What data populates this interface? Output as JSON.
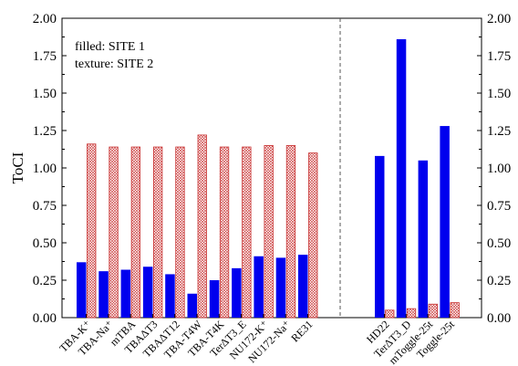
{
  "chart_data": {
    "type": "bar",
    "ylabel": "ToCI",
    "ylim": [
      0,
      2
    ],
    "yticks": [
      "0.00",
      "0.25",
      "0.50",
      "0.75",
      "1.00",
      "1.25",
      "1.50",
      "1.75",
      "2.00"
    ],
    "grid": false,
    "legend": {
      "placement": "top-left",
      "lines": [
        "filled: SITE 1",
        "texture: SITE 2"
      ]
    },
    "colors": {
      "site1": "#0000ee",
      "site2": "#c83232",
      "divider": "#555555"
    },
    "groups": [
      {
        "categories": [
          "TBA-K⁺",
          "TBA-Na⁺",
          "mTBA",
          "TBAΔT3",
          "TBAΔT12",
          "TBA-T4W",
          "TBA-T4K",
          "TerΔT3_E",
          "NU172-K⁺",
          "NU172-Na⁺",
          "RE31"
        ],
        "series": [
          {
            "name": "SITE 1",
            "values": [
              0.37,
              0.31,
              0.32,
              0.34,
              0.29,
              0.16,
              0.25,
              0.33,
              0.41,
              0.4,
              0.42
            ]
          },
          {
            "name": "SITE 2",
            "values": [
              1.16,
              1.14,
              1.14,
              1.14,
              1.14,
              1.22,
              1.14,
              1.14,
              1.15,
              1.15,
              1.1
            ]
          }
        ]
      },
      {
        "categories": [
          "HD22",
          "TerΔT3_D",
          "mToggle-25t",
          "Toggle-25t"
        ],
        "series": [
          {
            "name": "SITE 1",
            "values": [
              1.08,
              1.86,
              1.05,
              1.28
            ]
          },
          {
            "name": "SITE 2",
            "values": [
              0.05,
              0.06,
              0.09,
              0.1
            ]
          }
        ]
      }
    ]
  }
}
